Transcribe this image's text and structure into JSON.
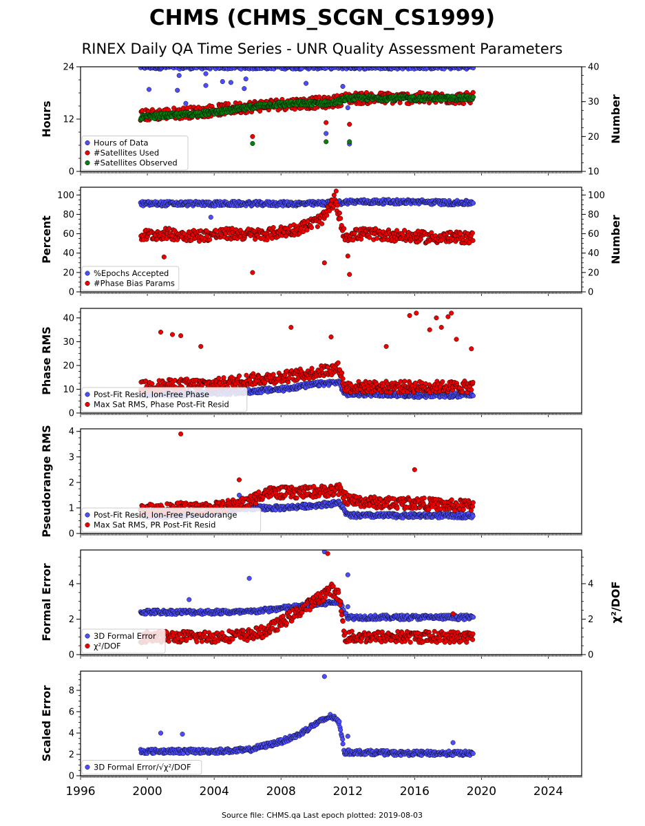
{
  "title": "CHMS (CHMS_SCGN_CS1999)",
  "subtitle": "RINEX Daily QA Time Series - UNR Quality Assessment Parameters",
  "footer": "Source file: CHMS.qa Last epoch plotted: 2019-08-03",
  "colors": {
    "blue": "#4d4dff",
    "red": "#ee0000",
    "green": "#0b7d0b"
  },
  "x_axis": {
    "range": [
      1996,
      2026
    ],
    "ticks": [
      1996,
      2000,
      2004,
      2008,
      2012,
      2016,
      2020,
      2024
    ],
    "tick_labels": [
      "1996",
      "2000",
      "2004",
      "2008",
      "2012",
      "2016",
      "2020",
      "2024"
    ]
  },
  "chart_data": [
    {
      "type": "scatter",
      "ylabel": "Hours",
      "ylim": [
        0,
        24
      ],
      "yticks": [
        0,
        12,
        24
      ],
      "ytick_labels": [
        "0",
        "12",
        "24"
      ],
      "y2label": "Number",
      "y2lim": [
        10,
        40
      ],
      "y2ticks": [
        10,
        20,
        30,
        40
      ],
      "y2tick_labels": [
        "10",
        "20",
        "30",
        "40"
      ],
      "legend": [
        {
          "label": "Hours of Data",
          "color": "blue"
        },
        {
          "label": "#Satellites Used",
          "color": "red"
        },
        {
          "label": "#Satellites Observed",
          "color": "green"
        }
      ],
      "legend_position": "lower-left",
      "series": [
        {
          "color": "blue",
          "axis": "left",
          "x": [
            1999.6,
            2003,
            2006,
            2009,
            2012,
            2015,
            2019.5
          ],
          "y": [
            24,
            24,
            24,
            24,
            24,
            24,
            24
          ],
          "outliers": [
            [
              2000.1,
              18.8
            ],
            [
              2001.8,
              18.6
            ],
            [
              2002.3,
              15.6
            ],
            [
              2003.5,
              19.7
            ],
            [
              2004.5,
              20.6
            ],
            [
              2005.0,
              20.4
            ],
            [
              2005.8,
              19.0
            ],
            [
              2005.9,
              21.2
            ],
            [
              2009.5,
              20.2
            ],
            [
              2010.7,
              8.7
            ],
            [
              2011.7,
              19.5
            ],
            [
              2012.0,
              14.6
            ],
            [
              2012.1,
              6.3
            ],
            [
              2001.9,
              22.0
            ],
            [
              2003.5,
              22.4
            ]
          ]
        },
        {
          "color": "red",
          "axis": "right",
          "x": [
            1999.6,
            2001,
            2003,
            2005,
            2007,
            2009,
            2011,
            2012,
            2014,
            2016,
            2018,
            2019.5
          ],
          "y": [
            26,
            26.5,
            27,
            28,
            29,
            29.5,
            29.8,
            31,
            31,
            31,
            31,
            31
          ],
          "outliers": [
            [
              2006.3,
              20.0
            ],
            [
              2010.7,
              24.0
            ],
            [
              2012.1,
              23.5
            ],
            [
              2010.6,
              29.0
            ]
          ]
        },
        {
          "color": "green",
          "axis": "right",
          "x": [
            1999.6,
            2001,
            2003,
            2005,
            2007,
            2009,
            2011,
            2012,
            2014,
            2016,
            2018,
            2019.5
          ],
          "y": [
            25.5,
            26,
            26.5,
            27.5,
            29,
            29.5,
            29.5,
            31,
            31,
            31,
            31,
            31
          ],
          "outliers": [
            [
              2006.3,
              18.0
            ],
            [
              2010.7,
              18.5
            ],
            [
              2012.1,
              18.5
            ]
          ]
        }
      ]
    },
    {
      "type": "scatter",
      "ylabel": "Percent",
      "ylim": [
        0,
        108
      ],
      "yticks": [
        0,
        20,
        40,
        60,
        80,
        100
      ],
      "ytick_labels": [
        "0",
        "20",
        "40",
        "60",
        "80",
        "100"
      ],
      "y2label": "Number",
      "y2lim": [
        0,
        108
      ],
      "y2ticks": [
        0,
        20,
        40,
        60,
        80,
        100
      ],
      "y2tick_labels": [
        "0",
        "20",
        "40",
        "60",
        "80",
        "100"
      ],
      "legend": [
        {
          "label": "%Epochs Accepted",
          "color": "blue"
        },
        {
          "label": "#Phase Bias Params",
          "color": "red"
        }
      ],
      "legend_position": "lower-left",
      "series": [
        {
          "color": "blue",
          "axis": "left",
          "x": [
            1999.6,
            2002,
            2004,
            2006,
            2008,
            2010,
            2011.5,
            2012,
            2014,
            2016,
            2018,
            2019.5
          ],
          "y": [
            91,
            91,
            91,
            91,
            91,
            91,
            92,
            93,
            93,
            93,
            92,
            92
          ],
          "outliers": [
            [
              2003.8,
              77.0
            ]
          ]
        },
        {
          "color": "red",
          "axis": "right",
          "x": [
            1999.6,
            2001,
            2003,
            2005,
            2007,
            2009,
            2010.5,
            2011.2,
            2011.8,
            2013,
            2015,
            2017,
            2019.5
          ],
          "y": [
            58,
            60,
            58,
            60,
            59,
            65,
            75,
            95,
            58,
            60,
            58,
            56,
            56
          ],
          "outliers": [
            [
              2006.3,
              20.0
            ],
            [
              2010.6,
              30.0
            ],
            [
              2012.1,
              18.0
            ],
            [
              2012.0,
              37.0
            ],
            [
              2001.0,
              36.0
            ],
            [
              2011.3,
              104.0
            ]
          ]
        }
      ]
    },
    {
      "type": "scatter",
      "ylabel": "Phase RMS",
      "ylim": [
        0,
        44
      ],
      "yticks": [
        0,
        10,
        20,
        30,
        40
      ],
      "ytick_labels": [
        "0",
        "10",
        "20",
        "30",
        "40"
      ],
      "legend": [
        {
          "label": "Post-Fit Resid, Ion-Free Phase",
          "color": "blue"
        },
        {
          "label": "Max Sat RMS, Phase Post-Fit Resid",
          "color": "red"
        }
      ],
      "legend_position": "lower-left",
      "series": [
        {
          "color": "blue",
          "axis": "left",
          "x": [
            1999.6,
            2002,
            2004,
            2006,
            2008,
            2010,
            2011.5,
            2011.8,
            2014,
            2016,
            2018,
            2019.5
          ],
          "y": [
            8,
            8,
            8.5,
            9,
            10,
            12,
            13,
            8,
            8,
            7.5,
            7.5,
            7.5
          ],
          "outliers": []
        },
        {
          "color": "red",
          "axis": "left",
          "x": [
            1999.6,
            2002,
            2004,
            2006,
            2008,
            2010,
            2011.5,
            2011.8,
            2014,
            2016,
            2018,
            2019.5
          ],
          "y": [
            11,
            12,
            12,
            14,
            15,
            17,
            19,
            11,
            11,
            11,
            11,
            11
          ],
          "outliers": [
            [
              2000.8,
              34.0
            ],
            [
              2001.5,
              33.0
            ],
            [
              2002.0,
              32.5
            ],
            [
              2003.2,
              28.0
            ],
            [
              2008.6,
              36.0
            ],
            [
              2011.0,
              32.0
            ],
            [
              2014.3,
              28.0
            ],
            [
              2015.7,
              41.0
            ],
            [
              2016.1,
              42.0
            ],
            [
              2017.3,
              40.0
            ],
            [
              2018.0,
              40.5
            ],
            [
              2018.2,
              42.0
            ],
            [
              2017.6,
              36.0
            ],
            [
              2018.5,
              31.0
            ],
            [
              2019.4,
              27.0
            ],
            [
              2016.9,
              35.0
            ]
          ]
        }
      ]
    },
    {
      "type": "scatter",
      "ylabel": "Pseudorange RMS",
      "ylim": [
        0,
        4.1
      ],
      "yticks": [
        0,
        1,
        2,
        3,
        4
      ],
      "ytick_labels": [
        "0",
        "1",
        "2",
        "3",
        "4"
      ],
      "legend": [
        {
          "label": "Post-Fit Resid, Ion-Free Pseudorange",
          "color": "blue"
        },
        {
          "label": "Max Sat RMS, PR Post-Fit Resid",
          "color": "red"
        }
      ],
      "legend_position": "lower-left",
      "series": [
        {
          "color": "blue",
          "axis": "left",
          "x": [
            1999.6,
            2002,
            2004,
            2006,
            2008,
            2010,
            2011.5,
            2012,
            2014,
            2016,
            2018,
            2019.5
          ],
          "y": [
            0.7,
            0.7,
            0.8,
            1.0,
            1.0,
            1.1,
            1.2,
            0.7,
            0.7,
            0.7,
            0.7,
            0.7
          ],
          "outliers": [
            [
              2005.5,
              1.5
            ]
          ]
        },
        {
          "color": "red",
          "axis": "left",
          "x": [
            1999.6,
            2002,
            2004,
            2006,
            2007,
            2009,
            2011.5,
            2012,
            2014,
            2016,
            2018,
            2019.5
          ],
          "y": [
            0.9,
            1.0,
            1.0,
            1.2,
            1.6,
            1.6,
            1.7,
            1.3,
            1.2,
            1.2,
            1.1,
            1.1
          ],
          "outliers": [
            [
              2002.0,
              3.9
            ],
            [
              2016.0,
              2.5
            ],
            [
              2005.5,
              2.1
            ]
          ]
        }
      ]
    },
    {
      "type": "scatter",
      "ylabel": "Formal Error",
      "ylim": [
        0,
        5.9
      ],
      "yticks": [
        0,
        2,
        4
      ],
      "ytick_labels": [
        "0",
        "2",
        "4"
      ],
      "y2label": "χ²/DOF",
      "y2lim": [
        0,
        5.9
      ],
      "y2ticks": [
        0,
        2,
        4
      ],
      "y2tick_labels": [
        "0",
        "2",
        "4"
      ],
      "legend": [
        {
          "label": "3D Formal Error",
          "color": "blue"
        },
        {
          "label": "χ²/DOF",
          "color": "red"
        }
      ],
      "legend_position": "lower-left",
      "series": [
        {
          "color": "blue",
          "axis": "left",
          "x": [
            1999.6,
            2002,
            2004,
            2006,
            2008,
            2010,
            2011.5,
            2012,
            2014,
            2016,
            2018,
            2019.5
          ],
          "y": [
            2.4,
            2.4,
            2.4,
            2.4,
            2.6,
            2.8,
            3.0,
            2.1,
            2.1,
            2.1,
            2.1,
            2.1
          ],
          "outliers": [
            [
              2002.5,
              3.1
            ],
            [
              2006.1,
              4.3
            ],
            [
              2010.6,
              5.8
            ],
            [
              2012.0,
              4.5
            ],
            [
              2012.0,
              2.7
            ]
          ]
        },
        {
          "color": "red",
          "axis": "right",
          "x": [
            1999.6,
            2002,
            2004,
            2006,
            2007,
            2008,
            2009,
            2010,
            2011,
            2011.5,
            2011.8,
            2013,
            2015,
            2017,
            2019.5
          ],
          "y": [
            1.0,
            1.0,
            1.0,
            1.1,
            1.3,
            1.8,
            2.4,
            3.0,
            3.7,
            3.3,
            1.0,
            1.0,
            1.0,
            1.0,
            1.0
          ],
          "outliers": [
            [
              2010.8,
              5.7
            ],
            [
              2018.3,
              2.3
            ]
          ]
        }
      ]
    },
    {
      "type": "scatter",
      "ylabel": "Scaled Error",
      "ylim": [
        0,
        9.8
      ],
      "yticks": [
        0,
        2,
        4,
        6,
        8
      ],
      "ytick_labels": [
        "0",
        "2",
        "4",
        "6",
        "8"
      ],
      "legend": [
        {
          "label": "3D Formal Error/√χ²/DOF",
          "color": "blue"
        }
      ],
      "legend_position": "lower-left",
      "series": [
        {
          "color": "blue",
          "axis": "left",
          "x": [
            1999.6,
            2002,
            2004,
            2006,
            2007,
            2008,
            2009,
            2010,
            2011,
            2011.5,
            2011.8,
            2013,
            2015,
            2017,
            2019.5
          ],
          "y": [
            2.3,
            2.3,
            2.3,
            2.4,
            2.8,
            3.2,
            3.8,
            4.8,
            5.6,
            5.0,
            2.2,
            2.2,
            2.1,
            2.1,
            2.1
          ],
          "outliers": [
            [
              2010.6,
              9.3
            ],
            [
              2000.8,
              4.0
            ],
            [
              2002.1,
              3.9
            ],
            [
              2012.0,
              3.7
            ],
            [
              2018.3,
              3.1
            ]
          ]
        }
      ]
    }
  ]
}
